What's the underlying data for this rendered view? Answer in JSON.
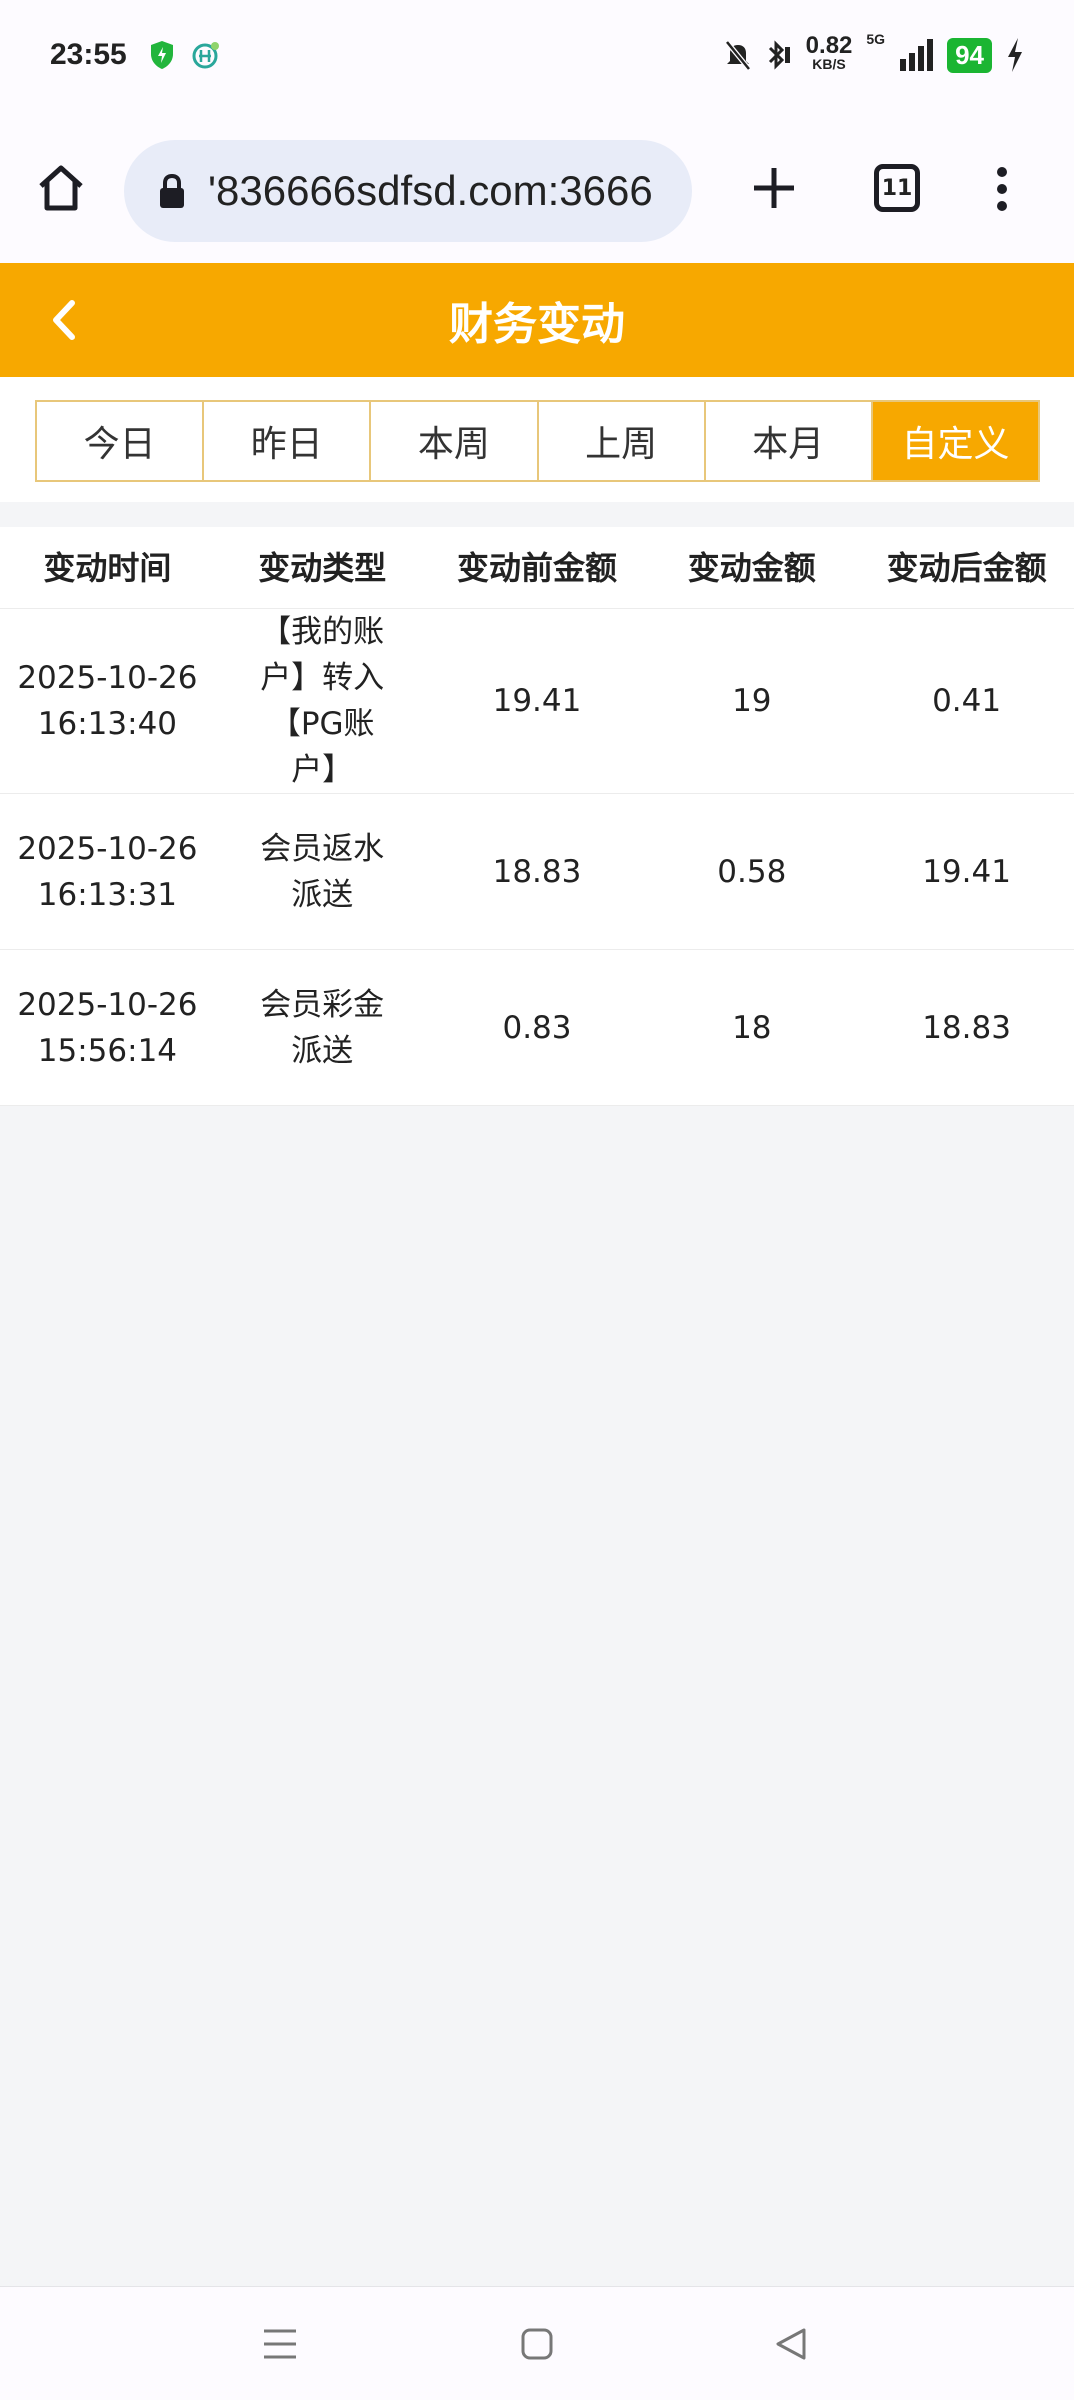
{
  "status_bar": {
    "time": "23:55",
    "net_speed": "0.82",
    "net_unit": "KB/S",
    "network": "5G",
    "battery": "94",
    "battery_color": "#1bb532"
  },
  "browser": {
    "url": "'836666sdfsd.com:3666",
    "tab_count": "11"
  },
  "header": {
    "title": "财务变动",
    "accent": "#f7a800"
  },
  "filter_tabs": [
    {
      "label": "今日"
    },
    {
      "label": "昨日"
    },
    {
      "label": "本周"
    },
    {
      "label": "上周"
    },
    {
      "label": "本月"
    },
    {
      "label": "自定义",
      "active": true
    }
  ],
  "table": {
    "columns": [
      "变动时间",
      "变动类型",
      "变动前金额",
      "变动金额",
      "变动后金额"
    ],
    "rows": [
      {
        "date": "2025-10-26",
        "time": "16:13:40",
        "type": "【我的账户】转入【PG账户】",
        "before": "19.41",
        "amount": "19",
        "after": "0.41"
      },
      {
        "date": "2025-10-26",
        "time": "16:13:31",
        "type": "会员返水派送",
        "before": "18.83",
        "amount": "0.58",
        "after": "19.41"
      },
      {
        "date": "2025-10-26",
        "time": "15:56:14",
        "type": "会员彩金派送",
        "before": "0.83",
        "amount": "18",
        "after": "18.83"
      }
    ]
  }
}
